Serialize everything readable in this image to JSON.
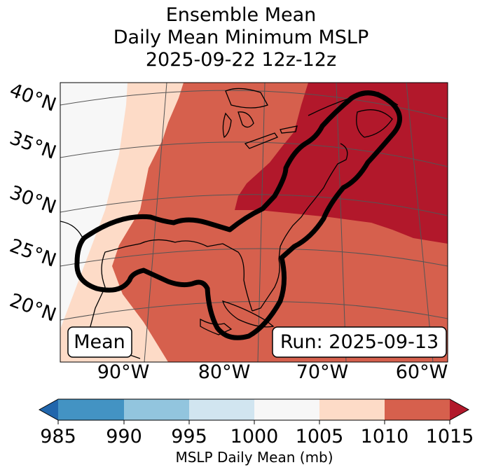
{
  "title": {
    "line1": "Ensemble Mean",
    "line2": "Daily Mean Minimum MSLP",
    "line3": "2025-09-22 12z-12z"
  },
  "map": {
    "lat_labels": [
      "40°N",
      "35°N",
      "30°N",
      "25°N",
      "20°N"
    ],
    "lon_labels": [
      "90°W",
      "80°W",
      "70°W",
      "60°W"
    ],
    "label_mean": "Mean",
    "label_run": "Run: 2025-09-13"
  },
  "colorbar": {
    "ticks": [
      "985",
      "990",
      "995",
      "1000",
      "1005",
      "1010",
      "1015"
    ],
    "label": "MSLP Daily Mean (mb)",
    "colors": {
      "under": "#2166ac",
      "b985_990": "#4393c3",
      "b990_995": "#92c5de",
      "b995_1000": "#d1e5f0",
      "b1000_1005": "#f7f7f7",
      "b1005_1010": "#fddbc7",
      "b1010_1015": "#d6604d",
      "over": "#b2182b"
    }
  }
}
